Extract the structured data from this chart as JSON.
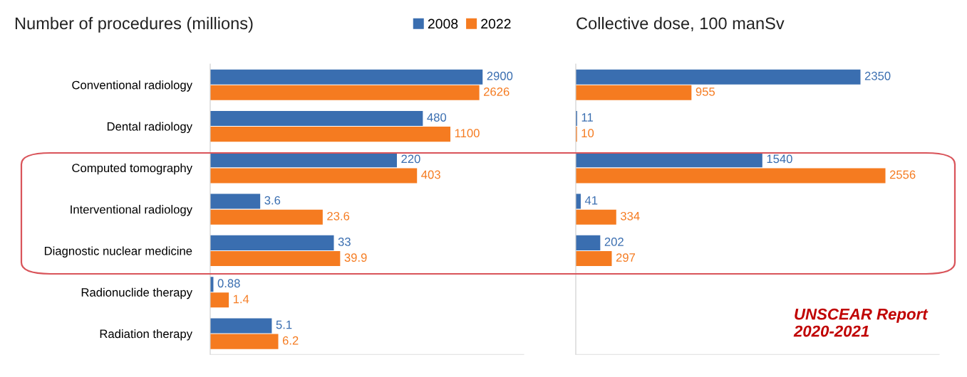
{
  "chart_data": [
    {
      "type": "bar",
      "orientation": "horizontal",
      "title": "Number of procedures (millions)",
      "categories": [
        "Conventional radiology",
        "Dental radiology",
        "Computed tomography",
        "Interventional radiology",
        "Diagnostic nuclear medicine",
        "Radionuclide therapy",
        "Radiation therapy"
      ],
      "series": [
        {
          "name": "2008",
          "color": "#3a6eb0",
          "values": [
            2900,
            480,
            220,
            3.6,
            33,
            0.88,
            5.1
          ]
        },
        {
          "name": "2022",
          "color": "#f57b20",
          "values": [
            2626,
            1100,
            403,
            23.6,
            39.9,
            1.4,
            6.2
          ]
        }
      ],
      "log": "x",
      "xlim": [
        0.8,
        10000
      ],
      "data_labels": true,
      "legend": "top right",
      "tick_labels": "y"
    },
    {
      "type": "bar",
      "orientation": "horizontal",
      "title": "Collective dose, 100 manSv",
      "categories": [
        null,
        null,
        null,
        null,
        null,
        null,
        null
      ],
      "series": [
        {
          "color": "#3a6eb0",
          "values": [
            2350,
            11,
            1540,
            41,
            202,
            null,
            null
          ]
        },
        {
          "color": "#f57b20",
          "values": [
            955,
            10,
            2556,
            334,
            297,
            null,
            null
          ]
        }
      ],
      "xlim": [
        0,
        3000
      ],
      "data_labels": true,
      "tick_labels": false,
      "annotations": [
        "UNSCEAR Report\n2020-2021"
      ]
    }
  ]
}
